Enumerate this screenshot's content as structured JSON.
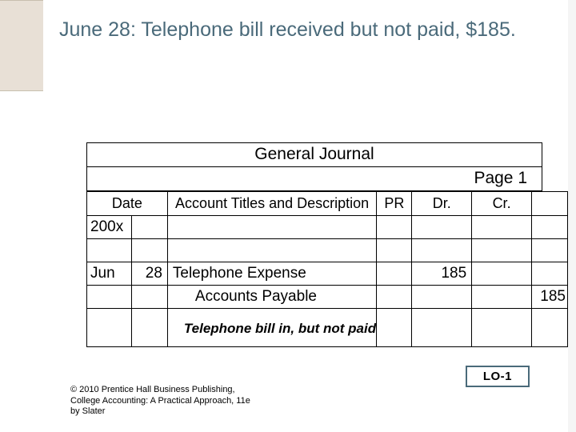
{
  "colors": {
    "title_color": "#4a6a7a",
    "accent_bg": "#e8e0d6",
    "accent_border": "#c8bfae",
    "table_border": "#000000",
    "lo_border": "#4a6a7a",
    "background": "#ffffff"
  },
  "title": "June 28:  Telephone bill received but not paid, $185.",
  "journal": {
    "heading": "General Journal",
    "page_label": "Page 1",
    "columns": {
      "date": "Date",
      "desc": "Account Titles and Description",
      "pr": "PR",
      "dr": "Dr.",
      "cr": "Cr."
    },
    "year_row": {
      "month": "200x",
      "day": "",
      "desc": "",
      "pr": "",
      "dr": "",
      "cr": ""
    },
    "blank_row": {
      "month": "",
      "day": "",
      "desc": "",
      "pr": "",
      "dr": "",
      "cr": ""
    },
    "entry1": {
      "month": "Jun",
      "day": "28",
      "desc": "Telephone Expense",
      "pr": "",
      "dr": "185",
      "cr": ""
    },
    "entry2": {
      "month": "",
      "day": "",
      "desc": "Accounts Payable",
      "pr": "",
      "dr": "",
      "cr": "185"
    },
    "note_row": {
      "month": "",
      "day": "",
      "desc": "Telephone bill in, but not paid",
      "pr": "",
      "dr": "",
      "cr": ""
    }
  },
  "lo_badge": "LO-1",
  "copyright": "© 2010 Prentice Hall Business Publishing, College Accounting: A Practical Approach, 11e by Slater"
}
